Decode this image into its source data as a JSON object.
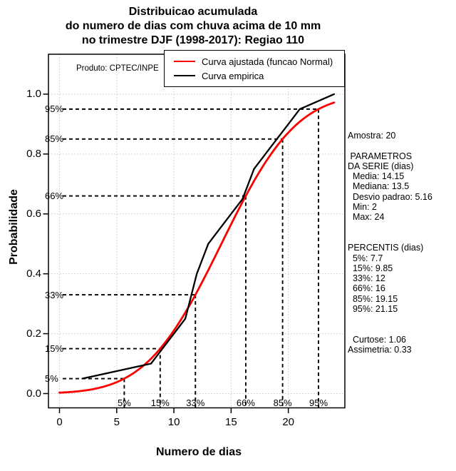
{
  "title": {
    "line1": "Distribuicao acumulada",
    "line2": "do numero de dias com chuva acima de 10 mm",
    "line3": "no trimestre DJF (1998-2017): Regiao 110"
  },
  "produto_label": "Produto: CPTEC/INPE",
  "legend": {
    "fitted": "Curva ajustada (funcao Normal)",
    "empirical": "Curva empirica"
  },
  "axes": {
    "xlabel": "Numero de dias",
    "ylabel": "Probabilidade"
  },
  "colors": {
    "fitted": "#ff0000",
    "empirical": "#000000",
    "grid": "#c9c9c9",
    "dashes": "#000000",
    "frame": "#000000"
  },
  "stats_panel": {
    "lines": [
      "Amostra: 20",
      "",
      " PARAMETROS",
      "DA SERIE (dias)",
      "  Media: 14.15",
      "  Mediana: 13.5",
      "  Desvio padrao: 5.16",
      "  Min: 2",
      "  Max: 24",
      "",
      "",
      "PERCENTIS (dias)",
      "  5%: 7.7",
      "  15%: 9.85",
      "  33%: 12",
      "  66%: 16",
      "  85%: 19.15",
      "  95%: 21.15",
      "",
      "",
      "  Curtose: 1.06",
      "Assimetria: 0.33"
    ]
  },
  "chart_data": {
    "type": "line",
    "title": "Distribuicao acumulada do numero de dias com chuva acima de 10 mm no trimestre DJF (1998-2017): Regiao 110",
    "xlabel": "Numero de dias",
    "ylabel": "Probabilidade",
    "xlim": [
      0,
      24
    ],
    "ylim": [
      0,
      1.1
    ],
    "x_ticks": [
      0,
      5,
      10,
      15,
      20
    ],
    "y_ticks": [
      0,
      0.2,
      0.4,
      0.6,
      0.8,
      1.0
    ],
    "grid": true,
    "legend_position": "top-right",
    "series": [
      {
        "name": "Curva ajustada (funcao Normal)",
        "color": "#ff0000",
        "model": "normal-cdf",
        "mean": 14.15,
        "sd": 5.16,
        "x_range": [
          0,
          24
        ]
      },
      {
        "name": "Curva empirica",
        "color": "#000000",
        "points": [
          [
            2,
            0.05
          ],
          [
            8,
            0.1
          ],
          [
            9,
            0.15
          ],
          [
            10,
            0.2
          ],
          [
            11,
            0.25
          ],
          [
            12,
            0.4
          ],
          [
            13,
            0.5
          ],
          [
            14,
            0.55
          ],
          [
            15,
            0.6
          ],
          [
            16,
            0.65
          ],
          [
            17,
            0.75
          ],
          [
            18,
            0.8
          ],
          [
            19,
            0.85
          ],
          [
            20,
            0.9
          ],
          [
            21,
            0.95
          ],
          [
            24,
            1.0
          ]
        ]
      }
    ],
    "percentile_markers": [
      {
        "label": "5%",
        "prob": 0.05,
        "x": 5.66
      },
      {
        "label": "15%",
        "prob": 0.15,
        "x": 8.8
      },
      {
        "label": "33%",
        "prob": 0.33,
        "x": 11.88
      },
      {
        "label": "66%",
        "prob": 0.66,
        "x": 16.28
      },
      {
        "label": "85%",
        "prob": 0.85,
        "x": 19.5
      },
      {
        "label": "95%",
        "prob": 0.95,
        "x": 22.64
      }
    ],
    "stats": {
      "amostra": 20,
      "media": 14.15,
      "mediana": 13.5,
      "desvio_padrao": 5.16,
      "min": 2,
      "max": 24,
      "percentis": {
        "5%": 7.7,
        "15%": 9.85,
        "33%": 12,
        "66%": 16,
        "85%": 19.15,
        "95%": 21.15
      },
      "curtose": 1.06,
      "assimetria": 0.33
    }
  }
}
